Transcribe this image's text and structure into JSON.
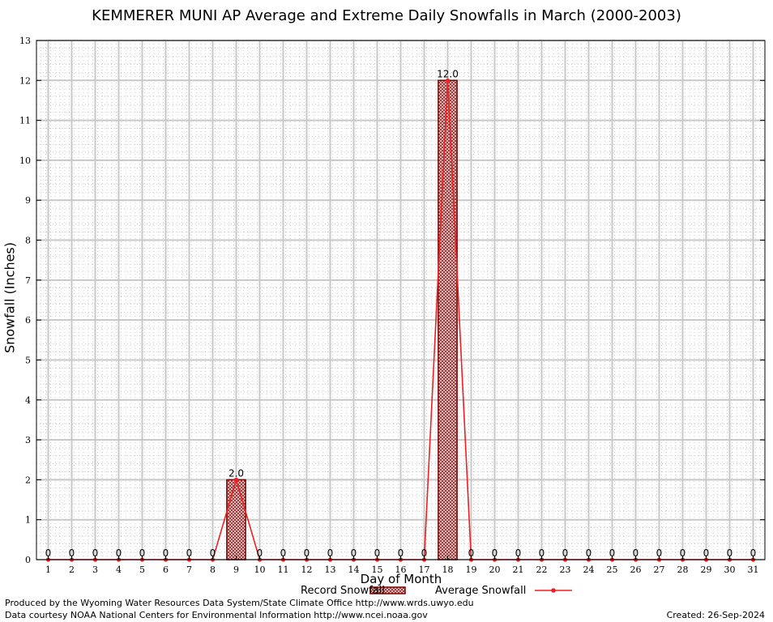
{
  "chart_data": {
    "type": "bar",
    "title": "KEMMERER MUNI AP Average and Extreme Daily Snowfalls in March (2000-2003)",
    "xlabel": "Day of Month",
    "ylabel": "Snowfall (Inches)",
    "xlim": [
      0.5,
      31.5
    ],
    "ylim": [
      0,
      13
    ],
    "grid": true,
    "legend_position": "bottom",
    "categories": [
      1,
      2,
      3,
      4,
      5,
      6,
      7,
      8,
      9,
      10,
      11,
      12,
      13,
      14,
      15,
      16,
      17,
      18,
      19,
      20,
      21,
      22,
      23,
      24,
      25,
      26,
      27,
      28,
      29,
      30,
      31
    ],
    "series": [
      {
        "name": "Record Snowfall",
        "type": "bar",
        "values": [
          0,
          0,
          0,
          0,
          0,
          0,
          0,
          0,
          2.0,
          0,
          0,
          0,
          0,
          0,
          0,
          0,
          0,
          12.0,
          0,
          0,
          0,
          0,
          0,
          0,
          0,
          0,
          0,
          0,
          0,
          0,
          0
        ],
        "labels": [
          "0",
          "0",
          "0",
          "0",
          "0",
          "0",
          "0",
          "0",
          "2.0",
          "0",
          "0",
          "0",
          "0",
          "0",
          "0",
          "0",
          "0",
          "12.0",
          "0",
          "0",
          "0",
          "0",
          "0",
          "0",
          "0",
          "0",
          "0",
          "0",
          "0",
          "0",
          "0"
        ]
      },
      {
        "name": "Average Snowfall",
        "type": "line",
        "values": [
          0,
          0,
          0,
          0,
          0,
          0,
          0,
          0,
          2.0,
          0,
          0,
          0,
          0,
          0,
          0,
          0,
          0,
          12.0,
          0,
          0,
          0,
          0,
          0,
          0,
          0,
          0,
          0,
          0,
          0,
          0,
          0
        ]
      }
    ],
    "yticks": [
      0,
      1,
      2,
      3,
      4,
      5,
      6,
      7,
      8,
      9,
      10,
      11,
      12,
      13
    ],
    "colors": {
      "bar_stroke": "#7a0000",
      "bar_fill": "#c8a0a0",
      "line": "#ee2020",
      "grid": "#c8c8c8"
    }
  },
  "footer": {
    "produced_by": "Produced by the Wyoming Water Resources Data System/State Climate Office http://www.wrds.uwyo.edu",
    "data_courtesy": "Data courtesy NOAA National Centers for Environmental Information http://www.ncei.noaa.gov",
    "created": "Created:  26-Sep-2024"
  }
}
